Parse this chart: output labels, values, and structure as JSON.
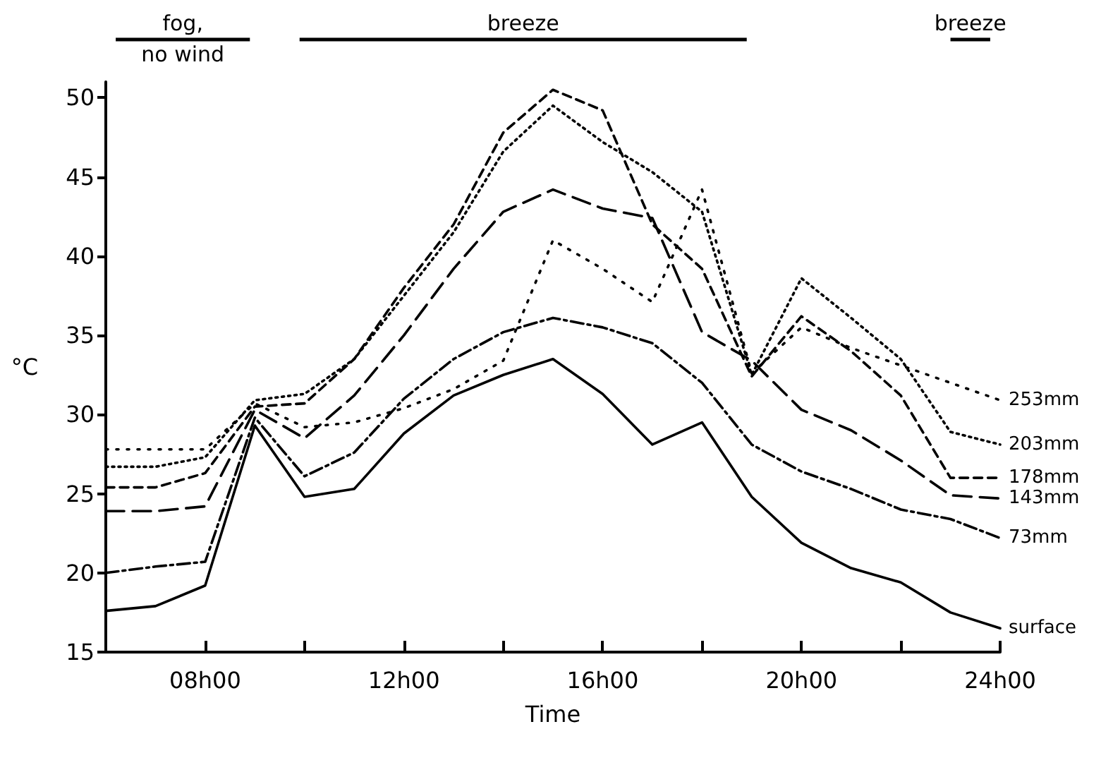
{
  "chart_data": {
    "type": "line",
    "xlabel": "Time",
    "ylabel": "°C",
    "categories": [
      null,
      null,
      "08h00",
      null,
      null,
      null,
      "12h00",
      null,
      null,
      null,
      "16h00",
      null,
      null,
      null,
      "20h00",
      null,
      null,
      null,
      "24h00"
    ],
    "series": [
      {
        "name": "surface",
        "color": "#000000",
        "line_style": "solid",
        "values": [
          17.6,
          17.9,
          19.2,
          29.3,
          24.8,
          25.3,
          28.8,
          31.2,
          32.5,
          33.5,
          31.3,
          28.1,
          29.5,
          24.8,
          21.9,
          20.3,
          19.4,
          17.5,
          16.5
        ]
      },
      {
        "name": "73mm",
        "color": "#000000",
        "line_style": "dashdot",
        "values": [
          20.0,
          20.4,
          20.7,
          29.8,
          26.1,
          27.6,
          31.0,
          33.5,
          35.2,
          36.1,
          35.5,
          34.5,
          32.0,
          28.1,
          26.4,
          25.3,
          24.0,
          23.4,
          22.2
        ]
      },
      {
        "name": "143mm",
        "color": "#000000",
        "line_style": "longdash",
        "values": [
          23.9,
          23.9,
          24.2,
          30.3,
          28.5,
          31.2,
          35.0,
          39.2,
          42.8,
          44.2,
          43.0,
          42.4,
          35.2,
          33.4,
          30.3,
          29.0,
          27.1,
          24.9,
          24.7
        ]
      },
      {
        "name": "178mm",
        "color": "#000000",
        "line_style": "dashed",
        "values": [
          25.4,
          25.4,
          26.3,
          30.5,
          30.7,
          33.5,
          38.0,
          42.0,
          47.8,
          50.5,
          49.2,
          42.0,
          39.2,
          32.4,
          36.2,
          34.0,
          31.2,
          26.0,
          26.0
        ]
      },
      {
        "name": "203mm",
        "color": "#000000",
        "line_style": "dotted",
        "values": [
          26.7,
          26.7,
          27.3,
          30.9,
          31.3,
          33.5,
          37.5,
          41.5,
          46.6,
          49.5,
          47.2,
          45.3,
          42.8,
          32.5,
          38.6,
          36.1,
          33.5,
          28.9,
          28.1
        ]
      },
      {
        "name": "253mm",
        "color": "#000000",
        "line_style": "loosedotted",
        "values": [
          27.8,
          27.8,
          27.8,
          30.7,
          29.2,
          29.5,
          30.4,
          31.6,
          33.4,
          41.0,
          39.2,
          37.1,
          44.2,
          32.6,
          35.5,
          34.2,
          33.1,
          32.0,
          30.9
        ]
      }
    ],
    "ylim": [
      15,
      51
    ],
    "yticks": [
      15,
      20,
      25,
      30,
      35,
      40,
      45,
      50
    ],
    "annotations": [
      "fog,\nno wind",
      "breeze",
      "breeze"
    ],
    "grid": false,
    "legend": false,
    "marker": "none"
  }
}
